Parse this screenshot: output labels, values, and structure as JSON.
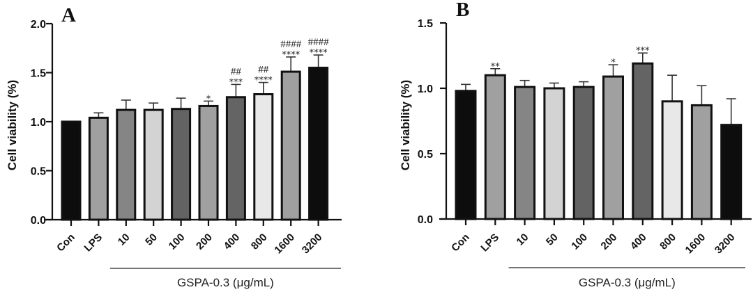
{
  "chart_data": [
    {
      "panel": "A",
      "type": "bar",
      "title": "",
      "xlabel": "",
      "ylabel": "Cell viability (%)",
      "ylim": [
        0,
        2.0
      ],
      "yticks": [
        "0.0",
        "0.5",
        "1.0",
        "1.5",
        "2.0"
      ],
      "ytick_values": [
        0,
        0.5,
        1.0,
        1.5,
        2.0
      ],
      "categories": [
        "Con",
        "LPS",
        "10",
        "50",
        "100",
        "200",
        "400",
        "800",
        "1600",
        "3200"
      ],
      "values": [
        1.0,
        1.04,
        1.12,
        1.12,
        1.13,
        1.16,
        1.25,
        1.28,
        1.51,
        1.55
      ],
      "error_upper": [
        1.0,
        1.09,
        1.22,
        1.19,
        1.24,
        1.21,
        1.38,
        1.4,
        1.66,
        1.68
      ],
      "fill_colors": [
        "#0d0d0d",
        "#a0a0a0",
        "#858585",
        "#d3d3d3",
        "#636363",
        "#a0a0a0",
        "#646464",
        "#e8e8e8",
        "#a0a0a0",
        "#0d0d0d"
      ],
      "significance_stars": [
        "",
        "",
        "",
        "",
        "",
        "*",
        "***",
        "****",
        "****",
        "****"
      ],
      "significance_hashes": [
        "",
        "",
        "",
        "",
        "",
        "",
        "##",
        "##",
        "####",
        "####"
      ],
      "group_bracket": {
        "label": "GSPA-0.3 (μg/mL)",
        "from": "10",
        "to": "3200"
      },
      "grid": false,
      "legend": "none"
    },
    {
      "panel": "B",
      "type": "bar",
      "title": "",
      "xlabel": "",
      "ylabel": "Cell viability (%)",
      "ylim": [
        0,
        1.5
      ],
      "yticks": [
        "0.0",
        "0.5",
        "1.0",
        "1.5"
      ],
      "ytick_values": [
        0,
        0.5,
        1.0,
        1.5
      ],
      "categories": [
        "Con",
        "LPS",
        "10",
        "50",
        "100",
        "200",
        "400",
        "800",
        "1600",
        "3200"
      ],
      "values": [
        0.98,
        1.1,
        1.01,
        1.0,
        1.01,
        1.09,
        1.19,
        0.9,
        0.87,
        0.72
      ],
      "error_upper": [
        1.03,
        1.15,
        1.06,
        1.04,
        1.05,
        1.18,
        1.27,
        1.1,
        1.02,
        0.92
      ],
      "fill_colors": [
        "#0d0d0d",
        "#a0a0a0",
        "#858585",
        "#d3d3d3",
        "#636363",
        "#a0a0a0",
        "#646464",
        "#e8e8e8",
        "#a0a0a0",
        "#0d0d0d"
      ],
      "significance_stars": [
        "",
        "**",
        "",
        "",
        "",
        "*",
        "***",
        "",
        "",
        ""
      ],
      "significance_hashes": [
        "",
        "",
        "",
        "",
        "",
        "",
        "",
        "",
        "",
        ""
      ],
      "group_bracket": {
        "label": "GSPA-0.3 (μg/mL)",
        "from": "10",
        "to": "3200"
      },
      "grid": false,
      "legend": "none"
    }
  ]
}
